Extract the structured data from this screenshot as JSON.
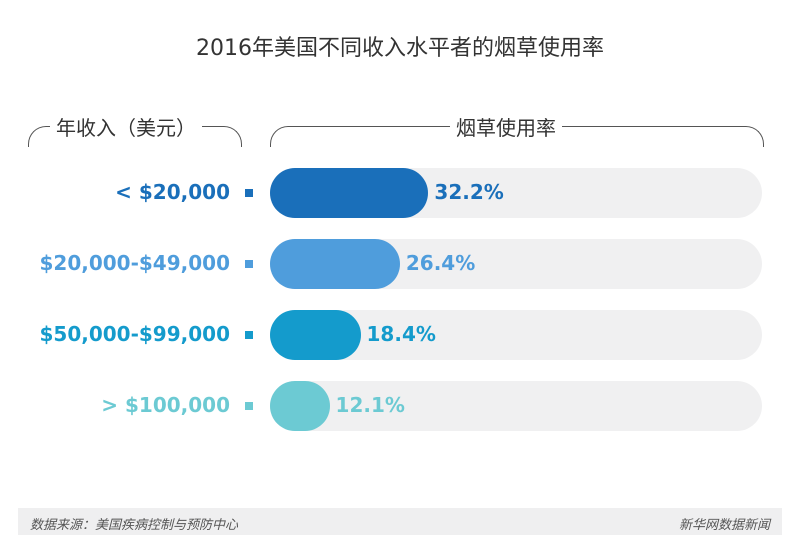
{
  "chart_data": {
    "type": "bar",
    "title": "2016年美国不同收入水平者的烟草使用率",
    "category_header": "年收入（美元）",
    "value_header": "烟草使用率",
    "categories": [
      "< $20,000",
      "$20,000-$49,000",
      "$50,000-$99,000",
      "> $100,000"
    ],
    "values": [
      32.2,
      26.4,
      18.4,
      12.1
    ],
    "value_labels": [
      "32.2%",
      "26.4%",
      "18.4%",
      "12.1%"
    ],
    "colors": [
      "#1a6fba",
      "#4f9ddc",
      "#149bcc",
      "#6ccad3"
    ],
    "xlim": [
      0,
      100
    ],
    "unit": "%"
  },
  "footer": {
    "source": "数据来源：美国疾病控制与预防中心",
    "brand": "新华网数据新闻"
  }
}
